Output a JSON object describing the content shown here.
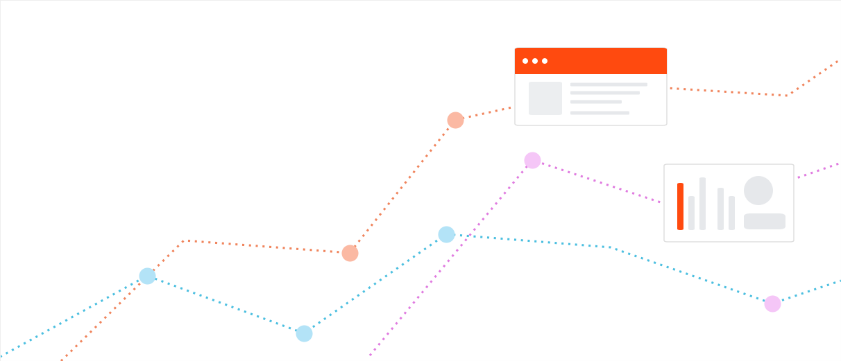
{
  "chart_data": {
    "type": "line",
    "xlim": [
      0,
      1212
    ],
    "ylim": [
      0,
      521
    ],
    "tick_labels": false,
    "grid": false,
    "series": [
      {
        "type": "line",
        "color": "#f0845c",
        "line_style": "dotted",
        "x": [
          88,
          265,
          504,
          656,
          742,
          960,
          1135,
          1212
        ],
        "values": [
          0,
          174,
          156,
          348,
          367,
          394,
          383,
          436
        ]
      },
      {
        "type": "line",
        "color": "#4bbfe0",
        "line_style": "dotted",
        "x": [
          0,
          212,
          438,
          643,
          880,
          1113,
          1212
        ],
        "values": [
          6,
          123,
          40,
          183,
          164,
          83,
          116
        ]
      },
      {
        "type": "line",
        "color": "#e07be0",
        "line_style": "dotted",
        "x": [
          533,
          767,
          955,
          1145,
          1212
        ],
        "values": [
          8,
          290,
          228,
          263,
          286
        ]
      },
      {
        "type": "scatter",
        "color": "#fbb9a3",
        "marker": "circle",
        "x": [
          504,
          656
        ],
        "values": [
          156,
          348
        ]
      },
      {
        "type": "scatter",
        "color": "#b3e3f7",
        "marker": "circle",
        "x": [
          212,
          438,
          643
        ],
        "values": [
          123,
          40,
          183
        ]
      },
      {
        "type": "scatter",
        "color": "#f5c6f7",
        "marker": "circle",
        "x": [
          767,
          1113
        ],
        "values": [
          290,
          83
        ]
      }
    ]
  }
}
